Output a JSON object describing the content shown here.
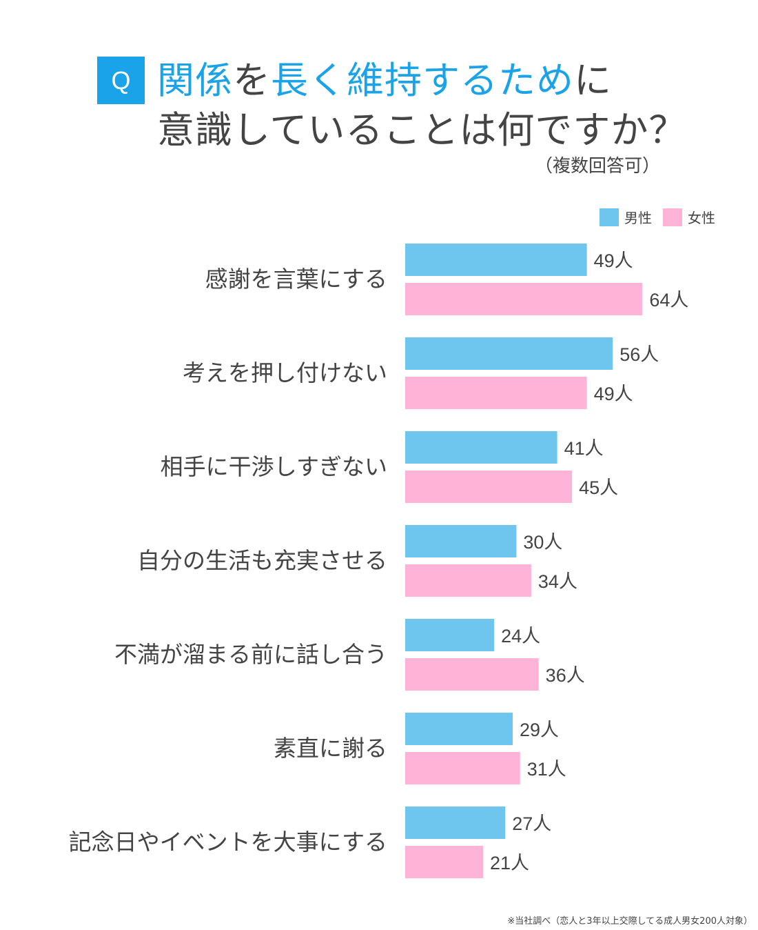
{
  "header": {
    "q_label": "Q",
    "title_line1": [
      {
        "text": "関係",
        "hl": true
      },
      {
        "text": "を",
        "hl": false
      },
      {
        "text": "長く維持するため",
        "hl": true
      },
      {
        "text": "に",
        "hl": false
      }
    ],
    "title_line2": "意識していることは何ですか？",
    "subtitle": "（複数回答可）"
  },
  "colors": {
    "accent": "#1aa3e8",
    "male": "#6ec6ee",
    "female": "#ffb3d6",
    "text": "#444444"
  },
  "chart_data": {
    "type": "bar",
    "orientation": "horizontal",
    "unit": "人",
    "categories": [
      "感謝を言葉にする",
      "考えを押し付けない",
      "相手に干渉しすぎない",
      "自分の生活も充実させる",
      "不満が溜まる前に話し合う",
      "素直に謝る",
      "記念日やイベントを大事にする"
    ],
    "series": [
      {
        "name": "男性",
        "values": [
          49,
          56,
          41,
          30,
          24,
          29,
          27
        ]
      },
      {
        "name": "女性",
        "values": [
          64,
          49,
          45,
          34,
          36,
          31,
          21
        ]
      }
    ],
    "legend_position": "top-right",
    "grid": false
  },
  "footnote": "※当社調べ（恋人と3年以上交際してる成人男女200人対象）"
}
